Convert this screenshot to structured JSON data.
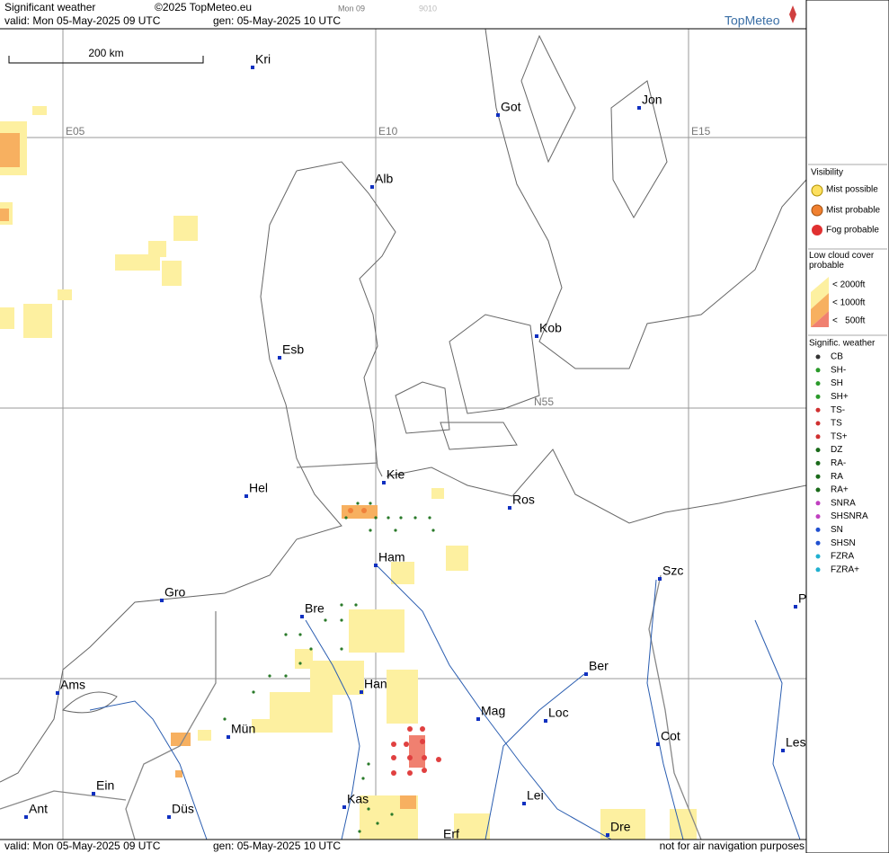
{
  "header": {
    "title": "Significant weather",
    "copyright": "©2025 TopMeteo.eu",
    "tab_day": "Mon 09",
    "tab_code": "9010",
    "valid": "valid:  Mon  05-May-2025  09 UTC",
    "gen": "gen: 05-May-2025 10 UTC",
    "logo": "TopMeteo"
  },
  "scale_label": "200 km",
  "grid_labels": [
    "E05",
    "E10",
    "E15",
    "N55"
  ],
  "cities": [
    "Kri",
    "Got",
    "Jon",
    "Alb",
    "Esb",
    "Kob",
    "Kie",
    "Hel",
    "Ros",
    "Ham",
    "Szc",
    "P",
    "Gro",
    "Bre",
    "Ber",
    "Ams",
    "Han",
    "Mag",
    "Loc",
    "Cot",
    "Les",
    "Mün",
    "Ein",
    "Kas",
    "Lei",
    "Ant",
    "Düs",
    "Dre",
    "Erf"
  ],
  "footer": {
    "valid": "valid:  Mon  05-May-2025  09 UTC",
    "gen": "gen: 05-May-2025 10 UTC",
    "note": "not for air navigation purposes"
  },
  "legend": {
    "visibility_title": "Visibility",
    "visibility": [
      "Mist possible",
      "Mist probable",
      "Fog probable"
    ],
    "cloud_title": "Low cloud cover probable",
    "cloud": [
      "< 2000ft",
      "< 1000ft",
      "<   500ft"
    ],
    "weather_title": "Signific. weather",
    "weather": [
      "CB",
      "SH-",
      "SH",
      "SH+",
      "TS-",
      "TS",
      "TS+",
      "DZ",
      "RA-",
      "RA",
      "RA+",
      "SNRA",
      "SHSNRA",
      "SN",
      "SHSN",
      "FZRA",
      "FZRA+"
    ]
  }
}
